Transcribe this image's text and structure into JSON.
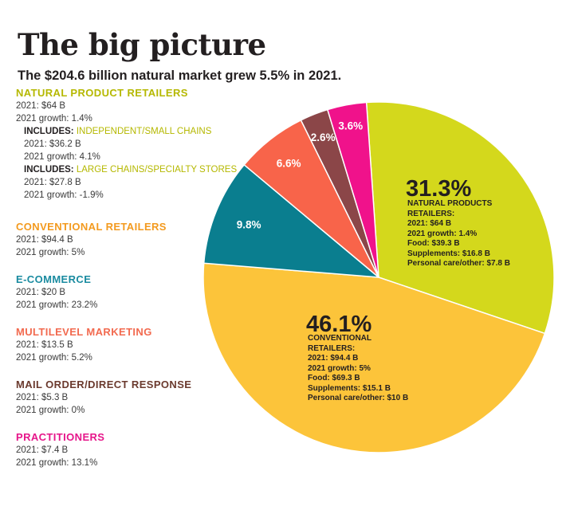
{
  "title": "The big picture",
  "subtitle": "The $204.6 billion natural market grew 5.5% in 2021.",
  "categories": [
    {
      "name": "NATURAL PRODUCT RETAILERS",
      "color": "#b5b800",
      "sales": "2021: $64 B",
      "growth": "2021 growth: 1.4%",
      "includes": [
        {
          "prefix": "INCLUDES:",
          "label": "INDEPENDENT/SMALL CHAINS",
          "sales": "2021: $36.2 B",
          "growth": "2021 growth: 4.1%"
        },
        {
          "prefix": "INCLUDES:",
          "label": "LARGE CHAINS/SPECIALTY STORES",
          "sales": "2021: $27.8 B",
          "growth": "2021 growth: -1.9%"
        }
      ]
    },
    {
      "name": "CONVENTIONAL RETAILERS",
      "color": "#f39a1e",
      "sales": "2021: $94.4 B",
      "growth": "2021 growth: 5%"
    },
    {
      "name": "E-COMMERCE",
      "color": "#1a8ba0",
      "sales": "2021: $20 B",
      "growth": "2021 growth: 23.2%"
    },
    {
      "name": "MULTILEVEL MARKETING",
      "color": "#f26a4f",
      "sales": "2021: $13.5 B",
      "growth": "2021 growth: 5.2%"
    },
    {
      "name": "MAIL ORDER/DIRECT RESPONSE",
      "color": "#6b3a2e",
      "sales": "2021: $5.3 B",
      "growth": "2021 growth: 0%"
    },
    {
      "name": "PRACTITIONERS",
      "color": "#e6168a",
      "sales": "2021: $7.4 B",
      "growth": "2021 growth: 13.1%"
    }
  ],
  "chart_data": {
    "type": "pie",
    "title": "The big picture",
    "slices": [
      {
        "name": "Natural product retailers",
        "value": 31.3,
        "label": "31.3%",
        "color": "#d4d81c"
      },
      {
        "name": "Conventional retailers",
        "value": 46.1,
        "label": "46.1%",
        "color": "#fcc43a"
      },
      {
        "name": "E-commerce",
        "value": 9.8,
        "label": "9.8%",
        "color": "#0a7e8f"
      },
      {
        "name": "Multilevel marketing",
        "value": 6.6,
        "label": "6.6%",
        "color": "#f8644a"
      },
      {
        "name": "Mail order/direct response",
        "value": 2.6,
        "label": "2.6%",
        "color": "#8b4648"
      },
      {
        "name": "Practitioners",
        "value": 3.6,
        "label": "3.6%",
        "color": "#f0128b"
      }
    ],
    "callouts": [
      {
        "pct": "31.3%",
        "lines": [
          "NATURAL PRODUCTS",
          "RETAILERS:",
          "2021: $64 B",
          "2021 growth: 1.4%",
          "Food: $39.3 B",
          "Supplements: $16.8 B",
          "Personal care/other: $7.8 B"
        ]
      },
      {
        "pct": "46.1%",
        "lines": [
          "CONVENTIONAL",
          "RETAILERS:",
          "2021: $94.4 B",
          "2021 growth: 5%",
          "Food: $69.3 B",
          "Supplements: $15.1 B",
          "Personal care/other: $10 B"
        ]
      }
    ]
  }
}
